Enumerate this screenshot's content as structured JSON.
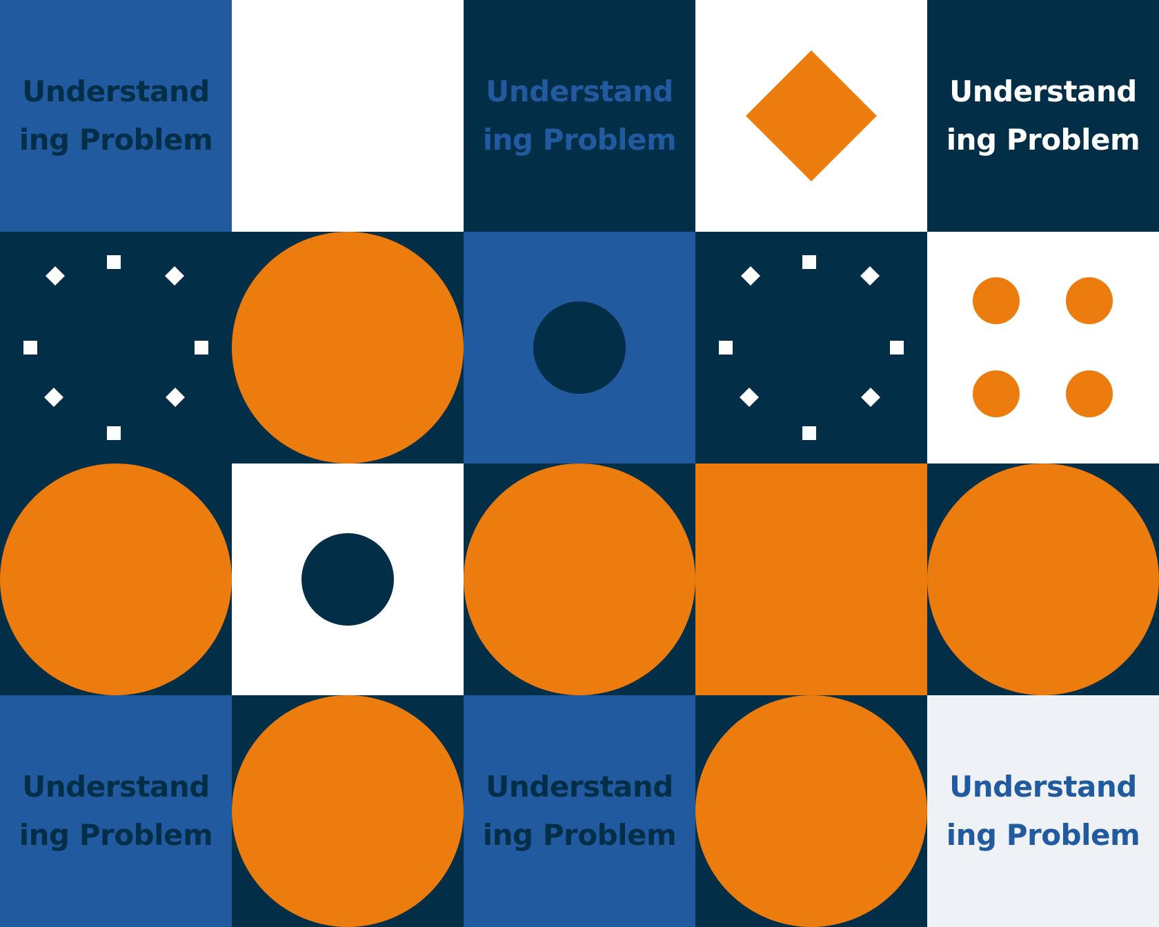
{
  "label": {
    "line1": "Understand",
    "line2": "ing Problem"
  },
  "colors": {
    "navy": "#032e48",
    "blue": "#215a9f",
    "orange": "#eb7c0d",
    "white": "#ffffff"
  },
  "tiles": [
    {
      "row": 1,
      "col": 1,
      "background": "blue",
      "content": "text",
      "text_color": "navy"
    },
    {
      "row": 1,
      "col": 2,
      "background": "white",
      "content": "empty"
    },
    {
      "row": 1,
      "col": 3,
      "background": "navy",
      "content": "text",
      "text_color": "blue"
    },
    {
      "row": 1,
      "col": 4,
      "background": "white",
      "content": "orange-diamond"
    },
    {
      "row": 1,
      "col": 5,
      "background": "navy",
      "content": "text",
      "text_color": "white"
    },
    {
      "row": 2,
      "col": 1,
      "background": "navy",
      "content": "ring-of-white-dots"
    },
    {
      "row": 2,
      "col": 2,
      "background": "navy",
      "content": "orange-circle"
    },
    {
      "row": 2,
      "col": 3,
      "background": "blue",
      "content": "navy-dot"
    },
    {
      "row": 2,
      "col": 4,
      "background": "navy",
      "content": "ring-of-white-dots"
    },
    {
      "row": 2,
      "col": 5,
      "background": "white",
      "content": "four-orange-dots"
    },
    {
      "row": 3,
      "col": 1,
      "background": "navy",
      "content": "orange-circle"
    },
    {
      "row": 3,
      "col": 2,
      "background": "white",
      "content": "navy-dot"
    },
    {
      "row": 3,
      "col": 3,
      "background": "navy",
      "content": "orange-circle"
    },
    {
      "row": 3,
      "col": 4,
      "background": "orange",
      "content": "empty"
    },
    {
      "row": 3,
      "col": 5,
      "background": "navy",
      "content": "orange-circle"
    },
    {
      "row": 4,
      "col": 1,
      "background": "blue",
      "content": "text",
      "text_color": "navy"
    },
    {
      "row": 4,
      "col": 2,
      "background": "navy",
      "content": "orange-circle"
    },
    {
      "row": 4,
      "col": 3,
      "background": "blue",
      "content": "text",
      "text_color": "navy"
    },
    {
      "row": 4,
      "col": 4,
      "background": "navy",
      "content": "orange-circle"
    },
    {
      "row": 4,
      "col": 5,
      "background": "white",
      "content": "text",
      "text_color": "blue"
    }
  ]
}
